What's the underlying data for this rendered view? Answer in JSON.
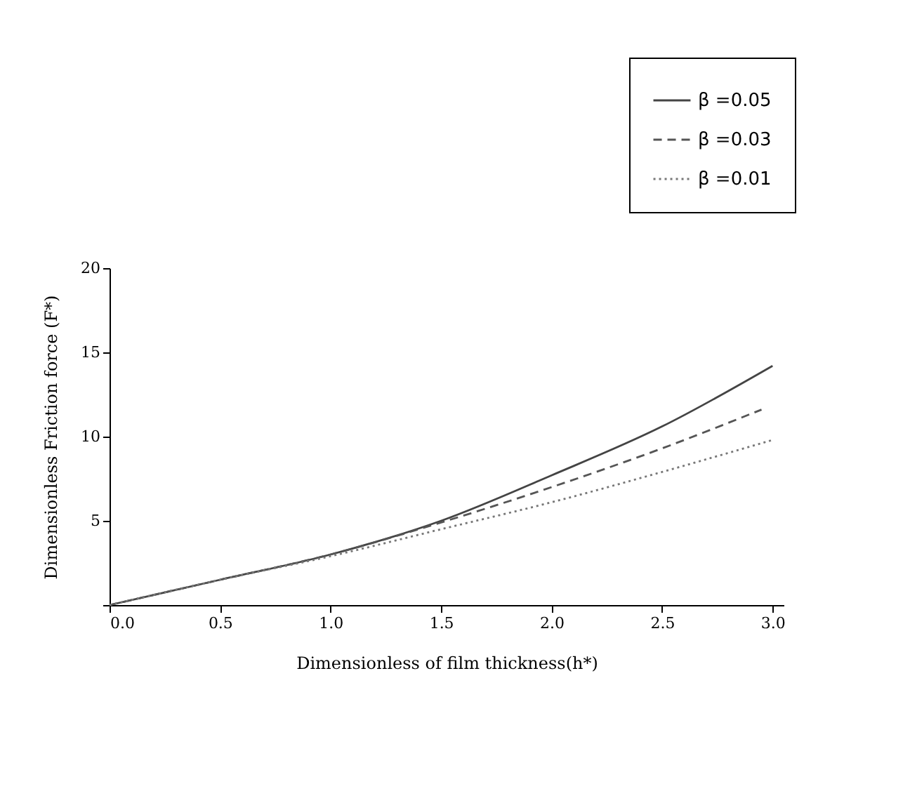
{
  "chart_data": {
    "type": "line",
    "xlabel": "Dimensionless of film thickness(h*)",
    "ylabel": "Dimensionless  Friction force (F*)",
    "x": [
      0,
      0.5,
      1.0,
      1.5,
      2.0,
      2.5,
      3.0
    ],
    "series": [
      {
        "name": "β =0.05",
        "color": "#444444",
        "line_style": "solid",
        "values": [
          0,
          1.5,
          3.0,
          5.0,
          7.7,
          10.6,
          14.2
        ]
      },
      {
        "name": "β =0.03",
        "color": "#555555",
        "line_style": "dashed",
        "x": [
          0,
          0.5,
          1.0,
          1.5,
          2.0,
          2.5,
          2.95
        ],
        "values": [
          0,
          1.5,
          3.0,
          4.9,
          7.0,
          9.3,
          11.6
        ]
      },
      {
        "name": "β =0.01",
        "color": "#777777",
        "line_style": "dotted",
        "values": [
          0,
          1.5,
          2.9,
          4.5,
          6.1,
          7.9,
          9.8
        ]
      }
    ],
    "xlim": [
      0,
      3.05
    ],
    "xticks": [
      {
        "value": 0,
        "label": "0.0"
      },
      0.5,
      {
        "value": 1,
        "label": "1.0"
      },
      1.5,
      {
        "value": 2,
        "label": "2.0"
      },
      2.5,
      {
        "value": 3,
        "label": "3.0"
      }
    ],
    "ylim": [
      0,
      20
    ],
    "yticks": [
      {
        "value": 0,
        "label": null
      },
      5,
      10,
      15,
      20
    ],
    "grid": false,
    "legend": "top right",
    "marker": "none"
  }
}
